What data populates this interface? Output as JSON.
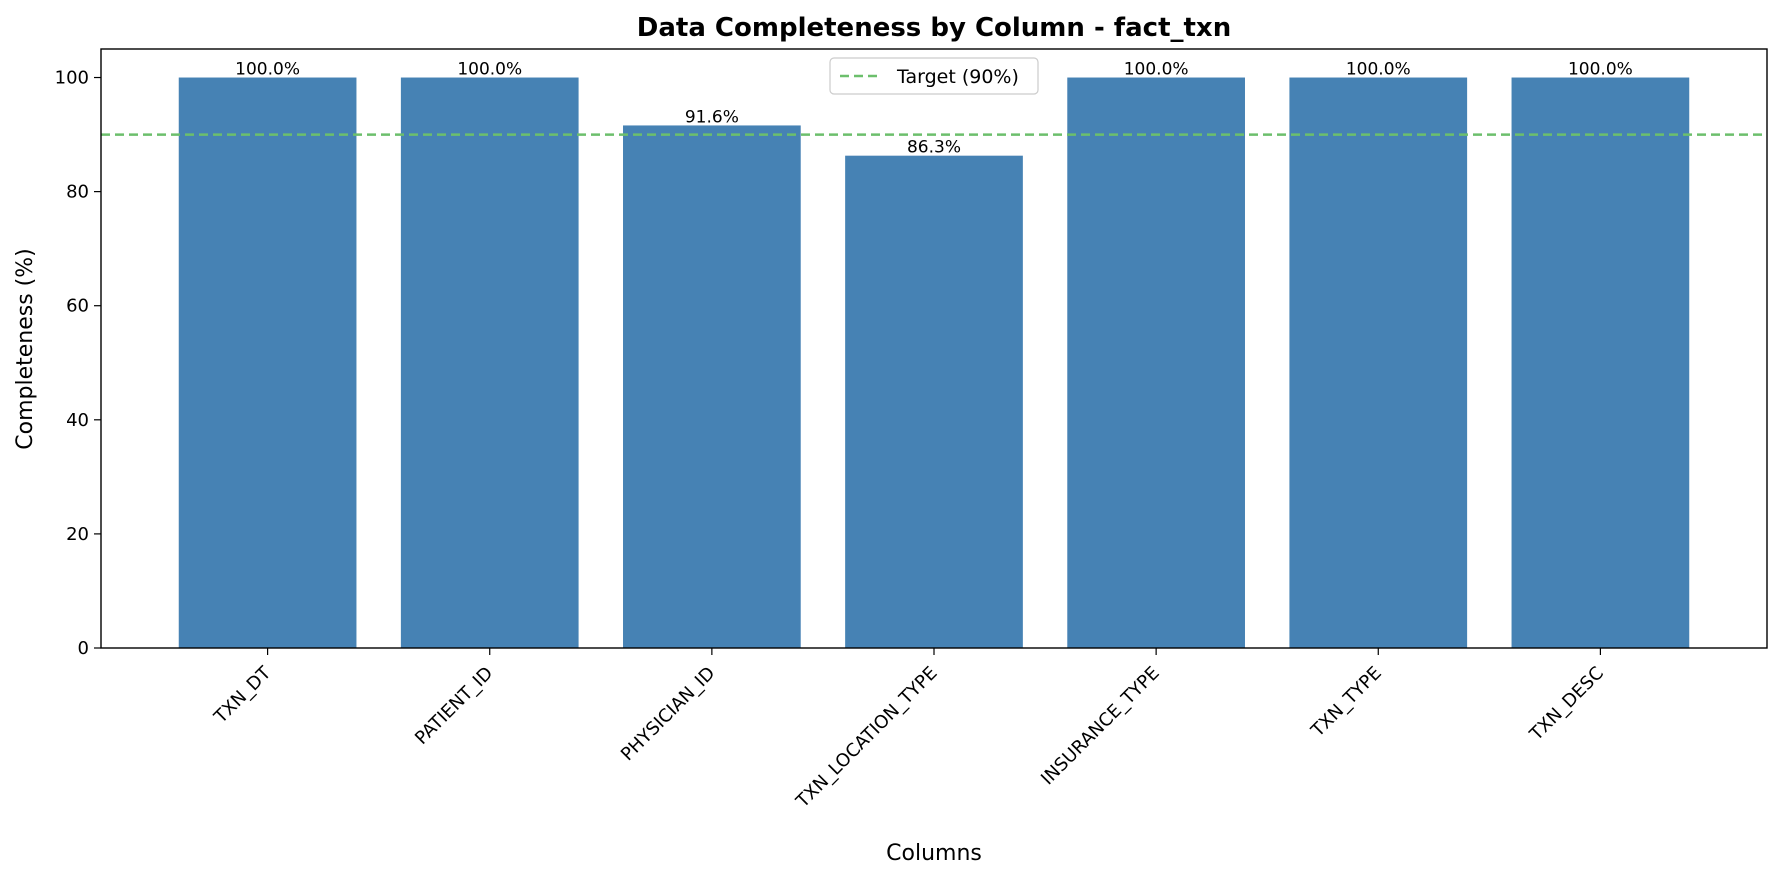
{
  "chart_data": {
    "type": "bar",
    "title": "Data Completeness by Column - fact_txn",
    "xlabel": "Columns",
    "ylabel": "Completeness (%)",
    "categories": [
      "TXN_DT",
      "PATIENT_ID",
      "PHYSICIAN_ID",
      "TXN_LOCATION_TYPE",
      "INSURANCE_TYPE",
      "TXN_TYPE",
      "TXN_DESC"
    ],
    "values": [
      100.0,
      100.0,
      91.6,
      86.3,
      100.0,
      100.0,
      100.0
    ],
    "value_labels": [
      "100.0%",
      "100.0%",
      "91.6%",
      "86.3%",
      "100.0%",
      "100.0%",
      "100.0%"
    ],
    "ylim": [
      0,
      105
    ],
    "yticks": [
      0,
      20,
      40,
      60,
      80,
      100
    ],
    "target": {
      "value": 90,
      "label": "Target (90%)",
      "color": "#6cbf6c"
    },
    "bar_color": "#4682b4",
    "grid": false,
    "legend_placement": "top-center"
  }
}
